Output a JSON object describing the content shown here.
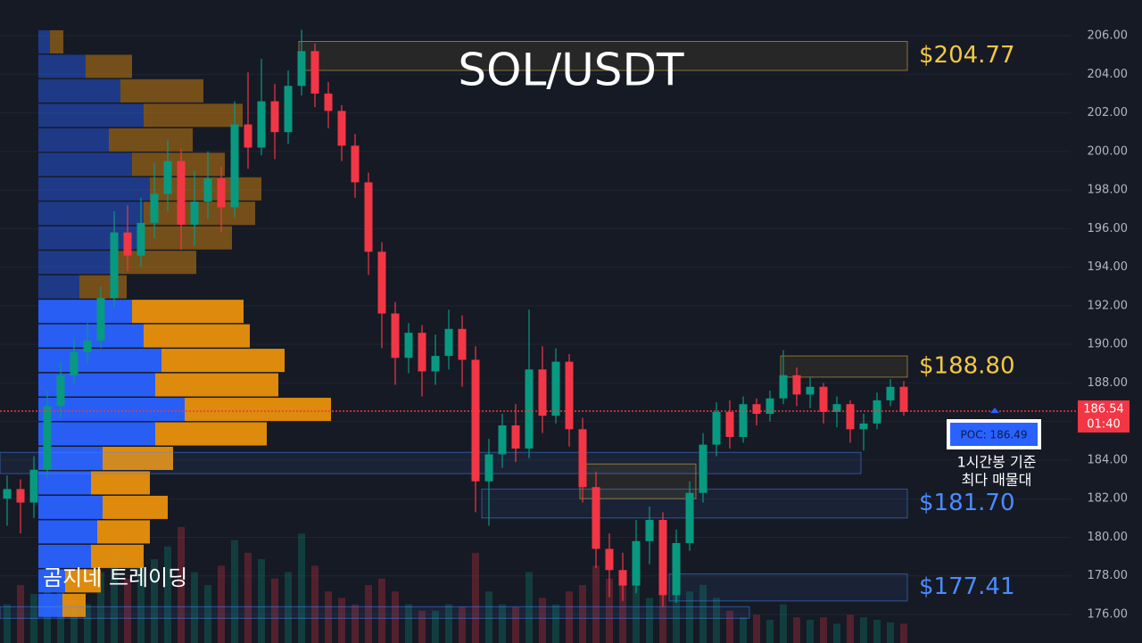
{
  "chart_data": {
    "type": "candlestick",
    "title": "SOL/USDT",
    "watermark": "곰지네 트레이딩",
    "ylim": [
      174.52,
      207.85
    ],
    "yticks": [
      {
        "value": 176,
        "label": "176.00"
      },
      {
        "value": 178,
        "label": "178.00"
      },
      {
        "value": 180,
        "label": "180.00"
      },
      {
        "value": 182,
        "label": "182.00"
      },
      {
        "value": 184,
        "label": "184.00"
      },
      {
        "value": 186,
        "label": "186.00"
      },
      {
        "value": 188,
        "label": "188.00"
      },
      {
        "value": 190,
        "label": "190.00"
      },
      {
        "value": 192,
        "label": "192.00"
      },
      {
        "value": 194,
        "label": "194.00"
      },
      {
        "value": 196,
        "label": "196.00"
      },
      {
        "value": 198,
        "label": "198.00"
      },
      {
        "value": 200,
        "label": "200.00"
      },
      {
        "value": 202,
        "label": "202.00"
      },
      {
        "value": 204,
        "label": "204.00"
      },
      {
        "value": 206,
        "label": "206.00"
      }
    ],
    "grid": true,
    "up_color": "#089981",
    "down_color": "#f23645",
    "open": [
      182.0,
      182.5,
      181.8,
      183.5,
      186.8,
      188.4,
      189.6,
      190.2,
      192.4,
      195.8,
      194.6,
      196.3,
      197.8,
      199.5,
      196.2,
      197.4,
      198.6,
      197.1,
      201.4,
      200.2,
      202.6,
      201.0,
      203.4,
      205.2,
      203.0,
      202.1,
      200.3,
      198.4,
      194.8,
      191.6,
      189.3,
      190.6,
      188.6,
      189.4,
      190.8,
      189.2,
      182.9,
      184.3,
      185.8,
      184.6,
      188.7,
      186.3,
      189.1,
      185.6,
      182.6,
      179.4,
      178.3,
      177.5,
      179.8,
      180.9,
      177.0,
      179.7,
      182.3,
      184.8,
      186.5,
      185.2,
      186.9,
      186.4,
      187.2,
      188.4,
      187.4,
      187.8,
      186.5,
      186.9,
      185.6,
      185.9,
      187.1,
      187.8
    ],
    "high": [
      183.2,
      183.0,
      184.2,
      187.6,
      189.1,
      190.3,
      191.1,
      193.0,
      196.9,
      197.2,
      197.6,
      199.4,
      200.6,
      200.1,
      199.0,
      200.0,
      199.2,
      202.6,
      204.1,
      204.8,
      203.5,
      204.2,
      206.3,
      205.6,
      203.6,
      202.4,
      200.9,
      198.9,
      195.3,
      192.2,
      191.1,
      191.0,
      190.5,
      191.8,
      191.5,
      189.9,
      185.1,
      186.4,
      186.9,
      191.8,
      189.9,
      189.8,
      189.5,
      186.2,
      183.4,
      180.2,
      179.2,
      180.9,
      181.6,
      181.3,
      180.4,
      182.9,
      185.4,
      187.0,
      187.1,
      187.3,
      187.2,
      187.6,
      189.7,
      188.8,
      188.3,
      188.0,
      187.3,
      187.1,
      186.4,
      187.5,
      188.2,
      188.1
    ],
    "low": [
      180.6,
      180.2,
      181.0,
      183.0,
      186.2,
      187.9,
      189.0,
      189.8,
      191.9,
      193.8,
      194.0,
      195.5,
      196.9,
      194.9,
      195.1,
      196.5,
      195.8,
      196.6,
      199.1,
      199.8,
      199.6,
      200.4,
      202.9,
      202.3,
      201.2,
      199.5,
      197.6,
      193.6,
      189.8,
      187.9,
      188.5,
      187.3,
      187.9,
      188.7,
      187.8,
      181.3,
      180.6,
      183.6,
      183.9,
      184.1,
      185.4,
      185.9,
      184.7,
      181.8,
      178.4,
      176.9,
      176.7,
      177.1,
      178.6,
      176.4,
      176.6,
      179.3,
      181.8,
      184.2,
      184.6,
      184.9,
      185.8,
      186.0,
      186.9,
      186.8,
      186.7,
      185.9,
      185.7,
      184.9,
      184.5,
      185.6,
      186.8,
      186.3
    ],
    "close": [
      182.5,
      181.8,
      183.5,
      186.8,
      188.4,
      189.6,
      190.2,
      192.4,
      195.8,
      194.6,
      196.3,
      197.8,
      199.5,
      196.2,
      197.4,
      198.6,
      197.1,
      201.4,
      200.2,
      202.6,
      201.0,
      203.4,
      205.2,
      203.0,
      202.1,
      200.3,
      198.4,
      194.8,
      191.6,
      189.3,
      190.6,
      188.6,
      189.4,
      190.8,
      189.2,
      182.9,
      184.3,
      185.8,
      184.6,
      188.7,
      186.3,
      189.1,
      185.6,
      182.6,
      179.4,
      178.3,
      177.5,
      179.8,
      180.9,
      177.0,
      179.7,
      182.3,
      184.8,
      186.5,
      185.2,
      186.9,
      186.4,
      187.2,
      188.4,
      187.4,
      187.8,
      186.5,
      186.9,
      185.6,
      185.9,
      187.1,
      187.8,
      186.5
    ],
    "volume": [
      30,
      45,
      38,
      60,
      40,
      35,
      30,
      55,
      70,
      50,
      60,
      65,
      75,
      90,
      55,
      45,
      60,
      80,
      70,
      65,
      50,
      55,
      85,
      60,
      40,
      35,
      30,
      45,
      50,
      40,
      30,
      25,
      25,
      30,
      28,
      70,
      40,
      30,
      28,
      55,
      35,
      30,
      40,
      45,
      60,
      50,
      55,
      45,
      35,
      65,
      50,
      40,
      45,
      35,
      25,
      20,
      22,
      18,
      30,
      20,
      18,
      20,
      15,
      22,
      20,
      18,
      16,
      15
    ],
    "volume_profile": {
      "levels": [
        205.68,
        204.41,
        203.14,
        201.87,
        200.6,
        199.33,
        198.06,
        196.79,
        195.52,
        194.25,
        192.98,
        191.71,
        190.44,
        189.17,
        187.9,
        186.63,
        185.36,
        184.09,
        182.82,
        181.55,
        180.28,
        179.01,
        177.74,
        176.47
      ],
      "buy": [
        13,
        53,
        92,
        118,
        79,
        105,
        125,
        118,
        112,
        85,
        46,
        105,
        118,
        138,
        131,
        164,
        131,
        72,
        59,
        72,
        66,
        59,
        30,
        27
      ],
      "sell": [
        15,
        52,
        93,
        111,
        94,
        104,
        125,
        125,
        105,
        92,
        53,
        125,
        119,
        138,
        138,
        164,
        125,
        79,
        66,
        73,
        59,
        59,
        40,
        26
      ],
      "buy_color": "#2962ff",
      "sell_color": "#e8900c"
    },
    "zones": [
      {
        "low": 204.2,
        "high": 205.7,
        "label": "$204.77",
        "color": "#f5c842"
      },
      {
        "low": 188.3,
        "high": 189.4,
        "label": "$188.80",
        "color": "#f5c842"
      },
      {
        "low": 183.3,
        "high": 184.4,
        "color": "#4a8cff"
      },
      {
        "low": 181.0,
        "high": 182.5,
        "label": "$181.70",
        "color": "#4a8cff"
      },
      {
        "low": 182.0,
        "high": 183.8,
        "color": "#f5c842"
      },
      {
        "low": 176.7,
        "high": 178.1,
        "label": "$177.41",
        "color": "#4a8cff"
      },
      {
        "low": 175.8,
        "high": 176.4,
        "color": "#4a8cff"
      }
    ],
    "current_price": 186.54,
    "countdown": "01:40",
    "poc": {
      "value": 186.49,
      "label": "POC: 186.49"
    },
    "annotation": [
      "1시간봉 기준",
      "최다 매물대"
    ]
  }
}
